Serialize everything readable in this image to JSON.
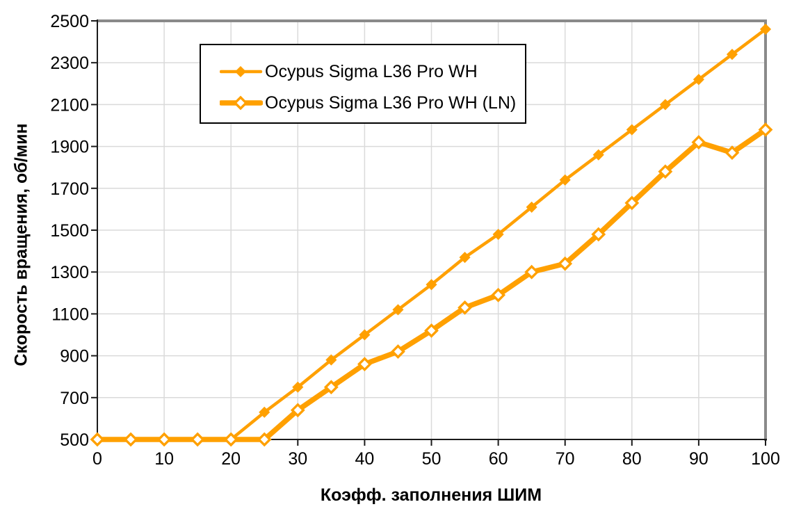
{
  "chart_data": {
    "type": "line",
    "title": "",
    "xlabel": "Коэфф. заполнения ШИМ",
    "ylabel": "Скорость вращения, об/мин",
    "x": [
      0,
      5,
      10,
      15,
      20,
      25,
      30,
      35,
      40,
      45,
      50,
      55,
      60,
      65,
      70,
      75,
      80,
      85,
      90,
      95,
      100
    ],
    "series": [
      {
        "name": "Ocypus Sigma L36 Pro WH",
        "marker": "filled-diamond",
        "values": [
          500,
          500,
          500,
          500,
          500,
          630,
          750,
          880,
          1000,
          1120,
          1240,
          1370,
          1480,
          1610,
          1740,
          1860,
          1980,
          2100,
          2220,
          2340,
          2460
        ]
      },
      {
        "name": "Ocypus Sigma L36 Pro WH (LN)",
        "marker": "open-diamond",
        "values": [
          500,
          500,
          500,
          500,
          500,
          500,
          640,
          750,
          860,
          920,
          1020,
          1130,
          1190,
          1300,
          1340,
          1480,
          1630,
          1780,
          1920,
          1870,
          1980
        ]
      }
    ],
    "xlim": [
      0,
      100
    ],
    "ylim": [
      500,
      2500
    ],
    "xticks": [
      0,
      10,
      20,
      30,
      40,
      50,
      60,
      70,
      80,
      90,
      100
    ],
    "yticks": [
      500,
      700,
      900,
      1100,
      1300,
      1500,
      1700,
      1900,
      2100,
      2300,
      2500
    ],
    "grid": true,
    "legend_position": "top-left-inside",
    "colors": {
      "series": "#FFA000",
      "grid": "#DADADA",
      "plot_border": "#8A8A8A",
      "axis": "#1A1A1A",
      "text": "#000000",
      "legend_border": "#000000",
      "background": "#FFFFFF"
    }
  }
}
